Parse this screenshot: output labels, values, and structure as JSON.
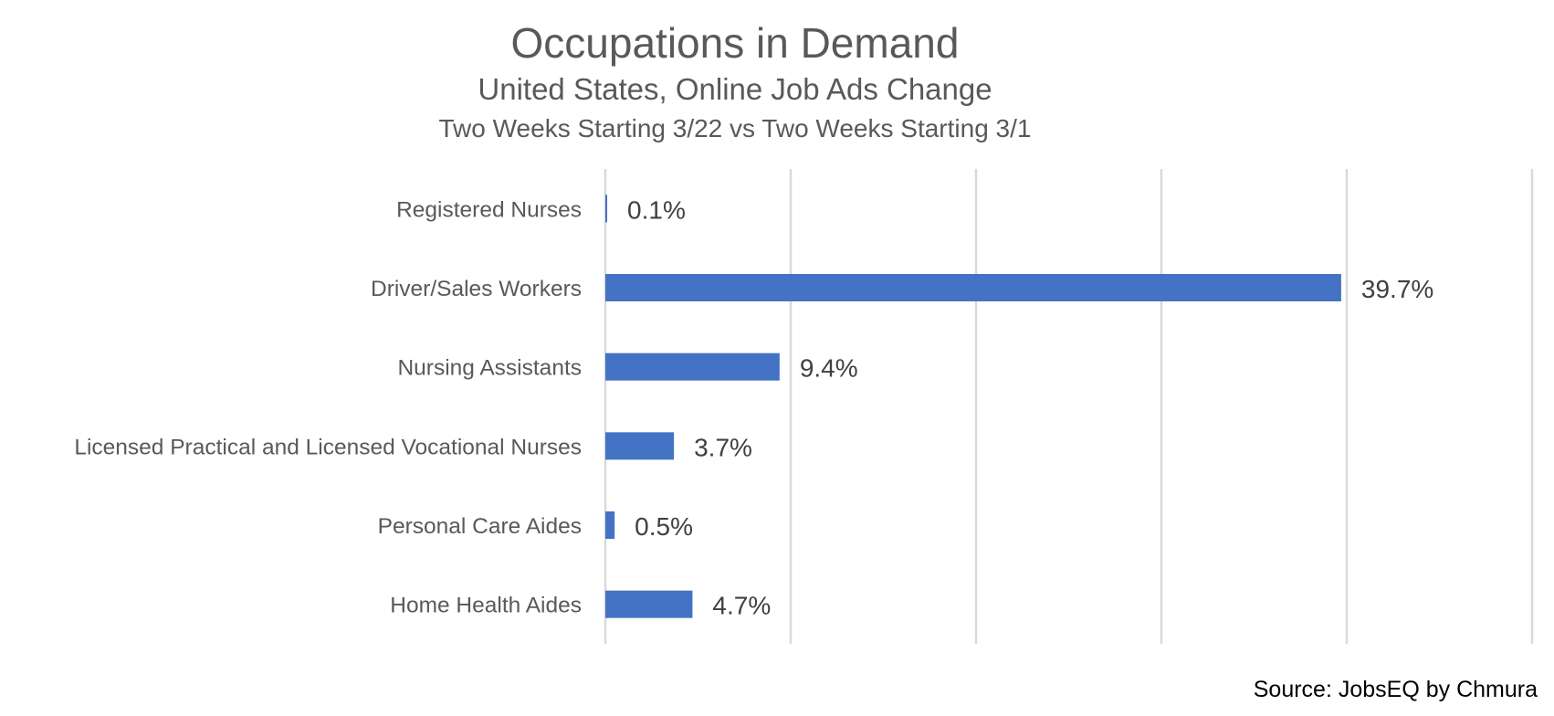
{
  "chart_data": {
    "type": "bar",
    "orientation": "horizontal",
    "title": "Occupations in Demand",
    "subtitle": "United States, Online Job Ads Change",
    "subtitle2": "Two Weeks Starting 3/22 vs Two Weeks Starting 3/1",
    "categories": [
      "Registered Nurses",
      "Driver/Sales Workers",
      "Nursing Assistants",
      "Licensed Practical and Licensed Vocational Nurses",
      "Personal Care Aides",
      "Home Health Aides"
    ],
    "values": [
      0.1,
      39.7,
      9.4,
      3.7,
      0.5,
      4.7
    ],
    "data_labels": [
      "0.1%",
      "39.7%",
      "9.4%",
      "3.7%",
      "0.5%",
      "4.7%"
    ],
    "unit": "%",
    "xlim": [
      0,
      50
    ],
    "gridlines": true,
    "legend": "none",
    "bar_color": "#4472C4",
    "source": "Source: JobsEQ by Chmura"
  }
}
